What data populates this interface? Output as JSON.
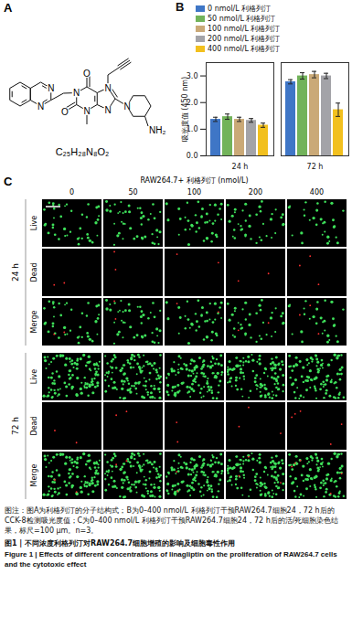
{
  "chart_data": {
    "type": "bar",
    "label": "B",
    "categories": [
      "24 h",
      "72 h"
    ],
    "series": [
      {
        "name": "0 nmol/L 利格列汀",
        "color": "#3f76c6",
        "values": [
          1.37,
          2.78
        ],
        "errors": [
          0.08,
          0.08
        ]
      },
      {
        "name": "50 nmol/L 利格列汀",
        "color": "#72b35a",
        "values": [
          1.47,
          3.0
        ],
        "errors": [
          0.1,
          0.12
        ]
      },
      {
        "name": "100 nmol/L 利格列汀",
        "color": "#caa977",
        "values": [
          1.37,
          3.05
        ],
        "errors": [
          0.08,
          0.12
        ]
      },
      {
        "name": "200 nmol/L 利格列汀",
        "color": "#a3a3a8",
        "values": [
          1.33,
          3.0
        ],
        "errors": [
          0.07,
          0.1
        ]
      },
      {
        "name": "400 nmol/L 利格列汀",
        "color": "#f2c01e",
        "values": [
          1.15,
          1.73
        ],
        "errors": [
          0.08,
          0.25
        ]
      }
    ],
    "y_label": "吸光度值 (450 nm)",
    "ylim": [
      0,
      3.5
    ],
    "yticks": [
      0,
      1,
      2,
      3
    ],
    "legend": "top",
    "grid": false
  },
  "panel_a": {
    "label": "A",
    "atoms": [
      "N",
      "N",
      "N",
      "N",
      "N",
      "N",
      "O",
      "O",
      "N",
      "NH₂"
    ],
    "formula": "C₂₅H₂₈N₈O₂"
  },
  "panel_c": {
    "label": "C",
    "title": "RAW264.7+ 利格列汀 (nmol/L)",
    "columns": [
      "0",
      "50",
      "100",
      "200",
      "400"
    ],
    "groups": [
      {
        "label": "24 h",
        "rows": [
          "Live",
          "Dead",
          "Merge"
        ]
      },
      {
        "label": "72 h",
        "rows": [
          "Live",
          "Dead",
          "Merge"
        ]
      }
    ]
  },
  "caption": {
    "note": "图注：图A为利格列汀的分子结构式；B为0–400 nmol/L 利格列汀干预RAW264.7细胞24，72 h后的CCK-8检测吸光度值；C为0–400 nmol/L 利格列汀干预RAW264.7细胞24，72 h后的活/死细胞染色结果，标尺=100 μm。n=3。",
    "title_zh": "图1 | 不同浓度利格列汀对RAW264.7细胞增殖的影响及细胞毒性作用",
    "title_en": "Figure 1 | Effects of different concentrations of linagliptin on the proliferation of RAW264.7 cells and the cytotoxic effect"
  }
}
